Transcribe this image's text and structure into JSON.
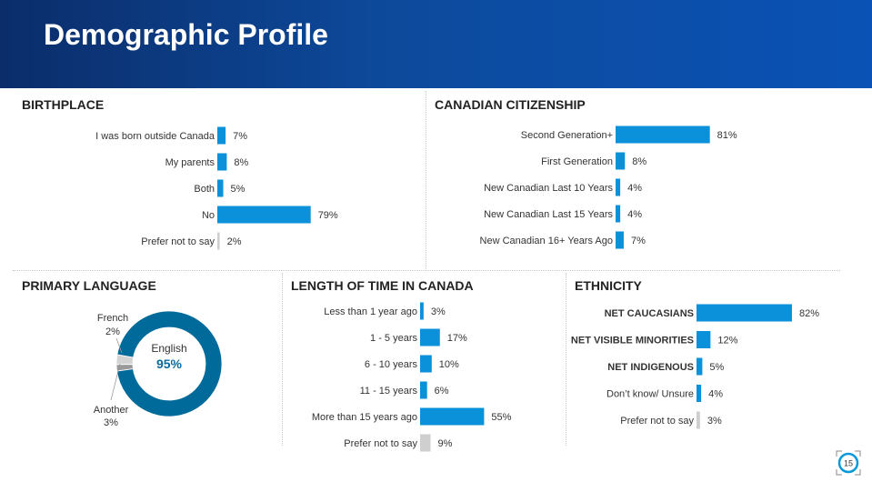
{
  "page": {
    "title": "Demographic Profile",
    "page_number": "15"
  },
  "colors": {
    "bar": "#0a91d9",
    "bar_muted": "#cfcfcf",
    "donut_main": "#006a9a",
    "donut_french": "#9a9a9a",
    "donut_other": "#d3d3d3",
    "pct_text": "#0a6a9c"
  },
  "chart_data": [
    {
      "id": "birthplace",
      "type": "bar",
      "title": "BIRTHPLACE",
      "categories": [
        "I was born outside Canada",
        "My parents",
        "Both",
        "No",
        "Prefer not to say"
      ],
      "values": [
        7,
        8,
        5,
        79,
        2
      ],
      "labels": [
        "7%",
        "8%",
        "5%",
        "79%",
        "2%"
      ],
      "muted": [
        false,
        false,
        false,
        false,
        true
      ]
    },
    {
      "id": "citizenship",
      "type": "bar",
      "title": "CANADIAN CITIZENSHIP",
      "categories": [
        "Second Generation+",
        "First Generation",
        "New Canadian Last 10 Years",
        "New Canadian Last 15 Years",
        "New Canadian 16+ Years Ago"
      ],
      "values": [
        81,
        8,
        4,
        4,
        7
      ],
      "labels": [
        "81%",
        "8%",
        "4%",
        "4%",
        "7%"
      ],
      "muted": [
        false,
        false,
        false,
        false,
        false
      ]
    },
    {
      "id": "language",
      "type": "pie",
      "title": "PRIMARY LANGUAGE",
      "slices": [
        {
          "name": "English",
          "value": 95,
          "label": "95%"
        },
        {
          "name": "French",
          "value": 2,
          "label": "2%"
        },
        {
          "name": "Another",
          "value": 3,
          "label": "3%"
        }
      ]
    },
    {
      "id": "length",
      "type": "bar",
      "title": "LENGTH OF TIME IN CANADA",
      "categories": [
        "Less than 1 year ago",
        "1 - 5 years",
        "6 - 10 years",
        "11 - 15 years",
        "More than 15 years ago",
        "Prefer not to say"
      ],
      "values": [
        3,
        17,
        10,
        6,
        55,
        9
      ],
      "labels": [
        "3%",
        "17%",
        "10%",
        "6%",
        "55%",
        "9%"
      ],
      "muted": [
        false,
        false,
        false,
        false,
        false,
        true
      ]
    },
    {
      "id": "ethnicity",
      "type": "bar",
      "title": "ETHNICITY",
      "categories": [
        "NET CAUCASIANS",
        "NET VISIBLE MINORITIES",
        "NET INDIGENOUS",
        "Don’t know/ Unsure",
        "Prefer not to say"
      ],
      "values": [
        82,
        12,
        5,
        4,
        3
      ],
      "labels": [
        "82%",
        "12%",
        "5%",
        "4%",
        "3%"
      ],
      "bold": [
        true,
        true,
        true,
        false,
        false
      ],
      "muted": [
        false,
        false,
        false,
        false,
        true
      ]
    }
  ]
}
